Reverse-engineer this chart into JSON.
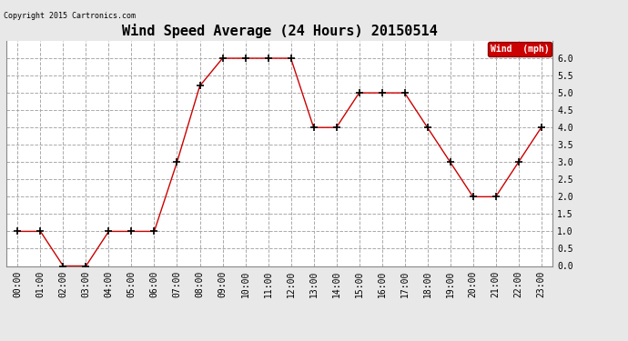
{
  "title": "Wind Speed Average (24 Hours) 20150514",
  "copyright": "Copyright 2015 Cartronics.com",
  "legend_label": "Wind  (mph)",
  "legend_bg": "#cc0000",
  "legend_text_color": "#ffffff",
  "x_labels": [
    "00:00",
    "01:00",
    "02:00",
    "03:00",
    "04:00",
    "05:00",
    "06:00",
    "07:00",
    "08:00",
    "09:00",
    "10:00",
    "11:00",
    "12:00",
    "13:00",
    "14:00",
    "15:00",
    "16:00",
    "17:00",
    "18:00",
    "19:00",
    "20:00",
    "21:00",
    "22:00",
    "23:00"
  ],
  "y_values": [
    1.0,
    1.0,
    0.0,
    0.0,
    1.0,
    1.0,
    1.0,
    3.0,
    5.2,
    6.0,
    6.0,
    6.0,
    6.0,
    4.0,
    4.0,
    5.0,
    5.0,
    5.0,
    4.0,
    3.0,
    2.0,
    2.0,
    3.0,
    4.0
  ],
  "line_color": "#cc0000",
  "marker": "+",
  "marker_color": "#000000",
  "ylim": [
    0.0,
    6.5
  ],
  "yticks": [
    0.0,
    0.5,
    1.0,
    1.5,
    2.0,
    2.5,
    3.0,
    3.5,
    4.0,
    4.5,
    5.0,
    5.5,
    6.0
  ],
  "bg_color": "#e8e8e8",
  "plot_bg_color": "#ffffff",
  "grid_color": "#aaaaaa",
  "grid_style": "--",
  "title_fontsize": 11,
  "copyright_fontsize": 6,
  "tick_fontsize": 7,
  "legend_fontsize": 7
}
